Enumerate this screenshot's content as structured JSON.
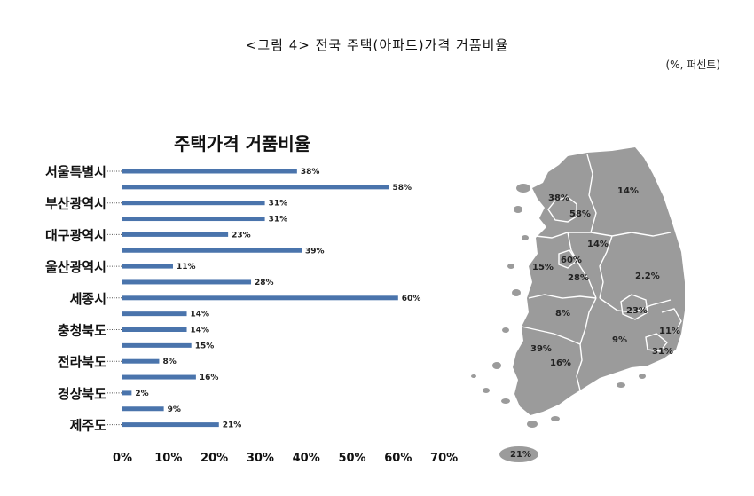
{
  "figure_caption": "<그림 4> 전국 주택(아파트)가격 거품비율",
  "unit_note": "(%, 퍼센트)",
  "chart_data": {
    "type": "bar",
    "orientation": "horizontal",
    "title": "주택가격 거품비율",
    "categories": [
      "서울특별시",
      "부산광역시",
      "대구광역시",
      "울산광역시",
      "세종시",
      "충청북도",
      "전라북도",
      "경상북도",
      "제주도"
    ],
    "bars": [
      {
        "category": "서울특별시",
        "value": 38,
        "label": "38%"
      },
      {
        "category": "서울특별시",
        "value": 58,
        "label": "58%"
      },
      {
        "category": "부산광역시",
        "value": 31,
        "label": "31%"
      },
      {
        "category": "부산광역시",
        "value": 31,
        "label": "31%"
      },
      {
        "category": "대구광역시",
        "value": 23,
        "label": "23%"
      },
      {
        "category": "대구광역시",
        "value": 39,
        "label": "39%"
      },
      {
        "category": "울산광역시",
        "value": 11,
        "label": "11%"
      },
      {
        "category": "울산광역시",
        "value": 28,
        "label": "28%"
      },
      {
        "category": "세종시",
        "value": 60,
        "label": "60%"
      },
      {
        "category": "세종시",
        "value": 14,
        "label": "14%"
      },
      {
        "category": "충청북도",
        "value": 14,
        "label": "14%"
      },
      {
        "category": "충청북도",
        "value": 15,
        "label": "15%"
      },
      {
        "category": "전라북도",
        "value": 8,
        "label": "8%"
      },
      {
        "category": "전라북도",
        "value": 16,
        "label": "16%"
      },
      {
        "category": "경상북도",
        "value": 2,
        "label": "2%"
      },
      {
        "category": "경상북도",
        "value": 9,
        "label": "9%"
      },
      {
        "category": "제주도",
        "value": 21,
        "label": "21%"
      }
    ],
    "x_ticks": [
      "0%",
      "10%",
      "20%",
      "30%",
      "40%",
      "50%",
      "60%",
      "70%"
    ],
    "xlim": [
      0,
      70
    ],
    "bar_color": "#4a74ac",
    "grid": false,
    "legend": "none"
  },
  "map_data": {
    "fill_color": "#9b9b9b",
    "border_color": "#ffffff",
    "region_values": [
      "38%",
      "14%",
      "58%",
      "14%",
      "15%",
      "60%",
      "28%",
      "2.2%",
      "8%",
      "23%",
      "11%",
      "9%",
      "39%",
      "31%",
      "16%",
      "21%"
    ]
  }
}
